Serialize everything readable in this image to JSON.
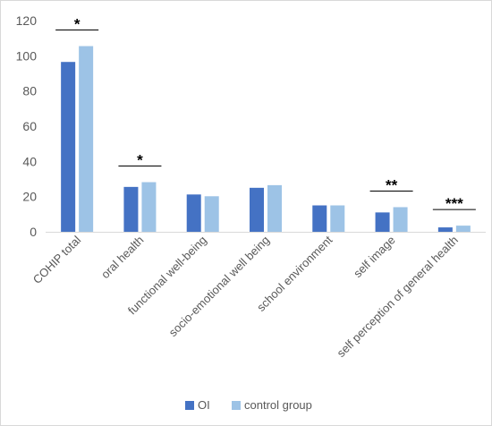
{
  "chart_data": {
    "type": "bar",
    "categories": [
      "COHIP total",
      "oral health",
      "functional well-being",
      "socio-emotional well being",
      "school environment",
      "self image",
      "self perception of general health"
    ],
    "series": [
      {
        "name": "OI",
        "color": "#4472C4",
        "values": [
          96.5,
          25.5,
          21.2,
          25.0,
          15.0,
          11.0,
          2.5
        ]
      },
      {
        "name": "control group",
        "color": "#9DC3E6",
        "values": [
          105.5,
          28.2,
          20.2,
          26.5,
          15.0,
          14.0,
          3.5
        ]
      }
    ],
    "significance": [
      "*",
      "*",
      "",
      "",
      "",
      "**",
      "***"
    ],
    "yticks": [
      0,
      20,
      40,
      60,
      80,
      100,
      120
    ],
    "ylim": [
      0,
      120
    ],
    "legend_position": "bottom",
    "grid": false
  }
}
